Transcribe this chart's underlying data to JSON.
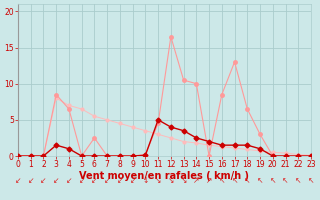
{
  "xlabel": "Vent moyen/en rafales ( km/h )",
  "bg_color": "#cce8e8",
  "grid_color": "#aacccc",
  "x_ticks": [
    0,
    1,
    2,
    3,
    4,
    5,
    6,
    7,
    8,
    9,
    10,
    11,
    12,
    13,
    14,
    15,
    16,
    17,
    18,
    19,
    20,
    21,
    22,
    23
  ],
  "y_ticks": [
    0,
    5,
    10,
    15,
    20
  ],
  "xlim": [
    0,
    23
  ],
  "ylim": [
    0,
    21
  ],
  "series_light": {
    "x": [
      0,
      1,
      2,
      3,
      4,
      5,
      6,
      7,
      8,
      9,
      10,
      11,
      12,
      13,
      14,
      15,
      16,
      17,
      18,
      19,
      20,
      21,
      22,
      23
    ],
    "y": [
      0,
      0,
      0,
      8.5,
      6.5,
      0,
      2.5,
      0,
      0,
      0,
      0.2,
      4.5,
      16.5,
      10.5,
      10,
      0,
      8.5,
      13,
      6.5,
      3,
      0,
      0,
      0,
      0
    ],
    "color": "#ff9999",
    "linewidth": 0.8,
    "markersize": 2.5
  },
  "series_dark": {
    "x": [
      0,
      1,
      2,
      3,
      4,
      5,
      6,
      7,
      8,
      9,
      10,
      11,
      12,
      13,
      14,
      15,
      16,
      17,
      18,
      19,
      20,
      21,
      22,
      23
    ],
    "y": [
      0,
      0,
      0,
      1.5,
      1,
      0,
      0,
      0,
      0,
      0,
      0.1,
      5,
      4,
      3.5,
      2.5,
      2,
      1.5,
      1.5,
      1.5,
      1,
      0,
      0,
      0,
      0
    ],
    "color": "#cc0000",
    "linewidth": 1.0,
    "markersize": 2.5
  },
  "series_diagonal": {
    "x": [
      0,
      1,
      2,
      3,
      4,
      5,
      6,
      7,
      8,
      9,
      10,
      11,
      12,
      13,
      14,
      15,
      16,
      17,
      18,
      19,
      20,
      21,
      22,
      23
    ],
    "y": [
      0,
      0,
      0,
      8,
      7,
      6.5,
      5.5,
      5,
      4.5,
      4,
      3.5,
      3,
      2.5,
      2,
      1.8,
      1.5,
      1.3,
      1.1,
      0.9,
      0.7,
      0.5,
      0.4,
      0.2,
      0.1
    ],
    "color": "#ffbbbb",
    "linewidth": 0.7,
    "markersize": 2.0
  },
  "tick_color": "#cc0000",
  "tick_fontsize": 5.5,
  "xlabel_fontsize": 7,
  "xlabel_color": "#cc0000",
  "arrow_color": "#dd2222",
  "arrows": [
    "↙",
    "↙",
    "↙",
    "↙",
    "↙",
    "↙",
    "↙",
    "↙",
    "↙",
    "↙",
    "↓",
    "↘",
    "↘",
    "↘",
    "↗",
    "↗",
    "↖",
    "↖",
    "↖",
    "↖",
    "↖",
    "↖",
    "↖",
    "↖"
  ]
}
